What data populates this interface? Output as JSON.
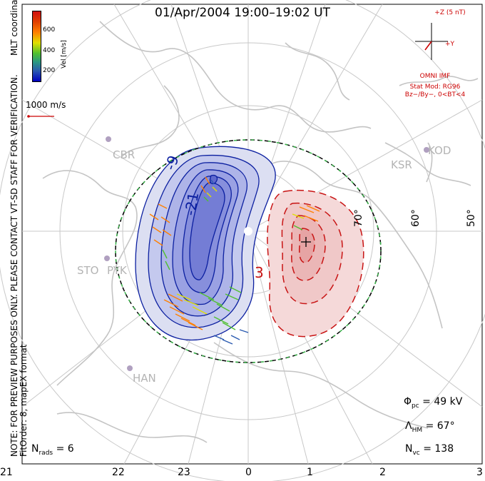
{
  "title": "01/Apr/2004 19:00–19:02 UT",
  "colorbar": {
    "label": "Vel [m/s]",
    "ticks": [
      "600",
      "400",
      "200"
    ],
    "colors": [
      "#d01010",
      "#ff8000",
      "#e0e000",
      "#50c030",
      "#2a5ab0",
      "#0000c0"
    ]
  },
  "scale_vector_label": "1000 m/s",
  "imf": {
    "z_label": "+Z (5 nT)",
    "y_label": "+Y",
    "source": "OMNI IMF",
    "stat_mod": "Stat Mod: RG96",
    "condition": "Bz−/By−, 0<BT<4"
  },
  "side_note": {
    "line1": "NOTE: FOR PREVIEW PURPOSES ONLY. PLEASE CONTACT VT-SD STAFF FOR VERIFICATION.",
    "line2": "FitOrder: 8, mapEX format",
    "coords": "MLT coordinates"
  },
  "stations": [
    "CBR",
    "STO",
    "PYK",
    "HAN",
    "KSR",
    "KOD"
  ],
  "latitude_labels": [
    "70°",
    "60°",
    "50°"
  ],
  "mlt_ticks": [
    "21",
    "22",
    "23",
    "0",
    "1",
    "2",
    "3"
  ],
  "contour_labels": [
    "-9",
    "-21",
    "3"
  ],
  "stats": {
    "phi_symbol": "Φ",
    "phi_sub": "pc",
    "phi_value": "= 49 kV",
    "lambda_symbol": "Λ",
    "lambda_sub": "HM",
    "lambda_value": "= 67°",
    "nvc_symbol": "N",
    "nvc_sub": "vc",
    "nvc_value": "= 138",
    "nrads_symbol": "N",
    "nrads_sub": "rads",
    "nrads_value": "= 6"
  },
  "accent_colors": {
    "negative_cell": "#0b1fa0",
    "positive_cell": "#c81414",
    "hm_boundary": "#3ab34a",
    "coastline": "#c4c4c4"
  }
}
